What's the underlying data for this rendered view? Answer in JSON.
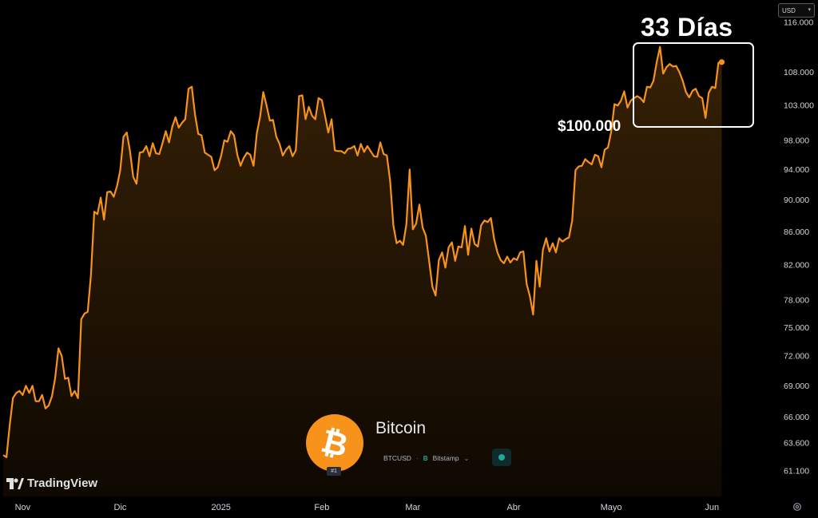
{
  "currency": {
    "label": "USD"
  },
  "annotations": {
    "big": "33 Días",
    "price_level": "$100.000"
  },
  "asset": {
    "name": "Bitcoin",
    "rank": "#1",
    "symbol": "BTCUSD",
    "separator": "·",
    "exchange": "Bitstamp",
    "exchange_icon": "B"
  },
  "branding": {
    "logo": "TradingView"
  },
  "colors": {
    "line": "#f7931a",
    "background": "#000000",
    "box": "#ffffff",
    "btc_orange": "#f7931a",
    "status": "#26a69a"
  },
  "chart_data": {
    "type": "area",
    "scale": "log",
    "grid": false,
    "x_tick_labels": [
      "Nov",
      "Dic",
      "2025",
      "Feb",
      "Mar",
      "Abr",
      "Mayo",
      "Jun"
    ],
    "y_tick_labels": [
      "116.000",
      "108.000",
      "103.000",
      "98.000",
      "94.000",
      "90.000",
      "86.000",
      "82.000",
      "78.000",
      "75.000",
      "72.000",
      "69.000",
      "66.000",
      "63.600",
      "61.100"
    ],
    "ylim": [
      59500,
      118000
    ],
    "x_dates": [
      "2024-10-26",
      "2024-10-27",
      "2024-10-28",
      "2024-10-29",
      "2024-10-30",
      "2024-10-31",
      "2024-11-01",
      "2024-11-02",
      "2024-11-03",
      "2024-11-04",
      "2024-11-05",
      "2024-11-06",
      "2024-11-07",
      "2024-11-08",
      "2024-11-09",
      "2024-11-10",
      "2024-11-11",
      "2024-11-12",
      "2024-11-13",
      "2024-11-14",
      "2024-11-15",
      "2024-11-16",
      "2024-11-17",
      "2024-11-18",
      "2024-11-19",
      "2024-11-20",
      "2024-11-21",
      "2024-11-22",
      "2024-11-23",
      "2024-11-24",
      "2024-11-25",
      "2024-11-26",
      "2024-11-27",
      "2024-11-28",
      "2024-11-29",
      "2024-11-30",
      "2024-12-01",
      "2024-12-02",
      "2024-12-03",
      "2024-12-04",
      "2024-12-05",
      "2024-12-06",
      "2024-12-07",
      "2024-12-08",
      "2024-12-09",
      "2024-12-10",
      "2024-12-11",
      "2024-12-12",
      "2024-12-13",
      "2024-12-14",
      "2024-12-15",
      "2024-12-16",
      "2024-12-17",
      "2024-12-18",
      "2024-12-19",
      "2024-12-20",
      "2024-12-21",
      "2024-12-22",
      "2024-12-23",
      "2024-12-24",
      "2024-12-25",
      "2024-12-26",
      "2024-12-27",
      "2024-12-28",
      "2024-12-29",
      "2024-12-30",
      "2024-12-31",
      "2025-01-01",
      "2025-01-02",
      "2025-01-03",
      "2025-01-04",
      "2025-01-05",
      "2025-01-06",
      "2025-01-07",
      "2025-01-08",
      "2025-01-09",
      "2025-01-10",
      "2025-01-11",
      "2025-01-12",
      "2025-01-13",
      "2025-01-14",
      "2025-01-15",
      "2025-01-16",
      "2025-01-17",
      "2025-01-18",
      "2025-01-19",
      "2025-01-20",
      "2025-01-21",
      "2025-01-22",
      "2025-01-23",
      "2025-01-24",
      "2025-01-25",
      "2025-01-26",
      "2025-01-27",
      "2025-01-28",
      "2025-01-29",
      "2025-01-30",
      "2025-01-31",
      "2025-02-01",
      "2025-02-02",
      "2025-02-03",
      "2025-02-04",
      "2025-02-05",
      "2025-02-06",
      "2025-02-07",
      "2025-02-08",
      "2025-02-09",
      "2025-02-10",
      "2025-02-11",
      "2025-02-12",
      "2025-02-13",
      "2025-02-14",
      "2025-02-15",
      "2025-02-16",
      "2025-02-17",
      "2025-02-18",
      "2025-02-19",
      "2025-02-20",
      "2025-02-21",
      "2025-02-22",
      "2025-02-23",
      "2025-02-24",
      "2025-02-25",
      "2025-02-26",
      "2025-02-27",
      "2025-02-28",
      "2025-03-01",
      "2025-03-02",
      "2025-03-03",
      "2025-03-04",
      "2025-03-05",
      "2025-03-06",
      "2025-03-07",
      "2025-03-08",
      "2025-03-09",
      "2025-03-10",
      "2025-03-11",
      "2025-03-12",
      "2025-03-13",
      "2025-03-14",
      "2025-03-15",
      "2025-03-16",
      "2025-03-17",
      "2025-03-18",
      "2025-03-19",
      "2025-03-20",
      "2025-03-21",
      "2025-03-22",
      "2025-03-23",
      "2025-03-24",
      "2025-03-25",
      "2025-03-26",
      "2025-03-27",
      "2025-03-28",
      "2025-03-29",
      "2025-03-30",
      "2025-03-31",
      "2025-04-01",
      "2025-04-02",
      "2025-04-03",
      "2025-04-04",
      "2025-04-05",
      "2025-04-06",
      "2025-04-07",
      "2025-04-08",
      "2025-04-09",
      "2025-04-10",
      "2025-04-11",
      "2025-04-12",
      "2025-04-13",
      "2025-04-14",
      "2025-04-15",
      "2025-04-16",
      "2025-04-17",
      "2025-04-18",
      "2025-04-19",
      "2025-04-20",
      "2025-04-21",
      "2025-04-22",
      "2025-04-23",
      "2025-04-24",
      "2025-04-25",
      "2025-04-26",
      "2025-04-27",
      "2025-04-28",
      "2025-04-29",
      "2025-04-30",
      "2025-05-01",
      "2025-05-02",
      "2025-05-03",
      "2025-05-04",
      "2025-05-05",
      "2025-05-06",
      "2025-05-07",
      "2025-05-08",
      "2025-05-09",
      "2025-05-10",
      "2025-05-11",
      "2025-05-12",
      "2025-05-13",
      "2025-05-14",
      "2025-05-15",
      "2025-05-16",
      "2025-05-17",
      "2025-05-18",
      "2025-05-19",
      "2025-05-20",
      "2025-05-21",
      "2025-05-22",
      "2025-05-23",
      "2025-05-24",
      "2025-05-25",
      "2025-05-26",
      "2025-05-27",
      "2025-05-28",
      "2025-05-29",
      "2025-05-30",
      "2025-05-31",
      "2025-06-01",
      "2025-06-02",
      "2025-06-03",
      "2025-06-04",
      "2025-06-05",
      "2025-06-06",
      "2025-06-07",
      "2025-06-08",
      "2025-06-09",
      "2025-06-10",
      "2025-06-11"
    ],
    "series": [
      {
        "values": [
          62500,
          62300,
          65200,
          67800,
          68300,
          68500,
          68100,
          69000,
          68300,
          69000,
          67500,
          67500,
          68100,
          66800,
          67100,
          68000,
          69800,
          72800,
          72000,
          69700,
          69800,
          68000,
          68500,
          67800,
          75900,
          76500,
          76700,
          80900,
          88500,
          88200,
          90300,
          87500,
          91000,
          91100,
          90400,
          91800,
          93900,
          98500,
          99100,
          96500,
          93000,
          92100,
          96300,
          96400,
          97200,
          95800,
          97600,
          96200,
          96100,
          97600,
          99300,
          97700,
          99900,
          101300,
          99800,
          100500,
          101000,
          105500,
          105800,
          101700,
          98900,
          98700,
          96300,
          96000,
          95700,
          93900,
          94300,
          95800,
          98000,
          97800,
          99300,
          98700,
          96000,
          94500,
          95600,
          96300,
          96000,
          94500,
          99000,
          101300,
          105000,
          103000,
          100800,
          100900,
          98500,
          97500,
          95900,
          96700,
          97200,
          95800,
          96600,
          104400,
          104500,
          101000,
          102800,
          101500,
          101000,
          104100,
          103800,
          101500,
          99100,
          101000,
          96600,
          96500,
          96500,
          96200,
          96800,
          96900,
          97200,
          95900,
          97500,
          96400,
          97200,
          96500,
          95800,
          95700,
          97700,
          96100,
          95900,
          92500,
          86800,
          84600,
          84900,
          84400,
          86900,
          94000,
          86300,
          87000,
          89400,
          86500,
          85500,
          82500,
          79500,
          78500,
          82600,
          83500,
          81700,
          84100,
          84700,
          82500,
          84200,
          84100,
          86700,
          83200,
          86400,
          84500,
          84200,
          86800,
          87400,
          87200,
          87700,
          85100,
          83500,
          82600,
          82200,
          83000,
          82300,
          82800,
          82600,
          83500,
          83600,
          79800,
          78400,
          76400,
          82500,
          79500,
          83800,
          85200,
          83600,
          84600,
          83500,
          85200,
          84800,
          85100,
          85300,
          87400,
          93900,
          94400,
          94500,
          95400,
          95000,
          94700,
          96000,
          95800,
          94300,
          96700,
          97000,
          99200,
          103200,
          103000,
          103700,
          105100,
          102700,
          103700,
          104100,
          104400,
          104100,
          103500,
          105800,
          105700,
          106700,
          109600,
          112000,
          107800,
          108800,
          109300,
          108900,
          109000,
          108000,
          106700,
          105000,
          104200,
          105200,
          105500,
          104400,
          104100,
          101200,
          104900,
          105800,
          105600,
          109500,
          109600
        ]
      }
    ]
  }
}
